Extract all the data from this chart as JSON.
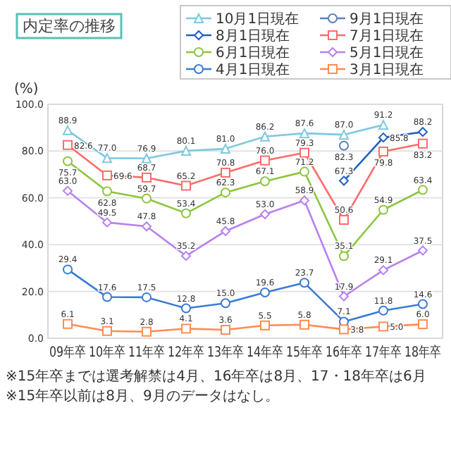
{
  "chart_data": {
    "type": "line",
    "title": "内定率の推移",
    "ylabel": "(%)",
    "categories": [
      "09年卒",
      "10年卒",
      "11年卒",
      "12年卒",
      "13年卒",
      "14年卒",
      "15年卒",
      "16年卒",
      "17年卒",
      "18年卒"
    ],
    "series": [
      {
        "name": "10月1日現在",
        "color": "#7ec8e0",
        "marker": "triangle",
        "values": [
          88.9,
          77.0,
          76.9,
          80.1,
          81.0,
          86.2,
          87.6,
          87.0,
          91.2,
          null
        ],
        "value_labels": [
          "88.9",
          "77.0",
          "76.9",
          "80.1",
          "81.0",
          "86.2",
          "87.6",
          "87.0",
          "91.2",
          null
        ]
      },
      {
        "name": "9月1日現在",
        "color": "#5a7fc0",
        "marker": "circle",
        "values": [
          null,
          null,
          null,
          null,
          null,
          null,
          null,
          82.3,
          null,
          null
        ],
        "value_labels": [
          null,
          null,
          null,
          null,
          null,
          null,
          null,
          "82.3",
          null,
          null
        ]
      },
      {
        "name": "8月1日現在",
        "color": "#1f5fbf",
        "marker": "diamond",
        "values": [
          null,
          null,
          null,
          null,
          null,
          null,
          null,
          67.3,
          85.8,
          88.2
        ],
        "value_labels": [
          null,
          null,
          null,
          null,
          null,
          null,
          null,
          "67.3",
          "85.8",
          "88.2"
        ]
      },
      {
        "name": "7月1日現在",
        "color": "#ff6b6b",
        "marker": "square",
        "values": [
          82.6,
          69.6,
          68.7,
          65.2,
          70.8,
          76.0,
          79.3,
          50.6,
          79.8,
          83.2
        ],
        "value_labels": [
          "82.6",
          "69.6",
          "68.7",
          "65.2",
          "70.8",
          "76.0",
          "79.3",
          "50.6",
          "79.8",
          "83.2"
        ]
      },
      {
        "name": "6月1日現在",
        "color": "#8cc63f",
        "marker": "circle",
        "values": [
          75.7,
          62.8,
          59.7,
          53.4,
          62.3,
          67.1,
          71.2,
          35.1,
          54.9,
          63.4
        ],
        "value_labels": [
          "75.7",
          "62.8",
          "59.7",
          "53.4",
          "62.3",
          "67.1",
          "71.2",
          "35.1",
          "54.9",
          "63.4"
        ]
      },
      {
        "name": "5月1日現在",
        "color": "#b880f0",
        "marker": "diamond",
        "values": [
          63.0,
          49.5,
          47.8,
          35.2,
          45.8,
          53.0,
          58.9,
          17.9,
          29.1,
          37.5
        ],
        "value_labels": [
          "63.0",
          "49.5",
          "47.8",
          "35.2",
          "45.8",
          "53.0",
          "58.9",
          "17.9",
          "29.1",
          "37.5"
        ]
      },
      {
        "name": "4月1日現在",
        "color": "#3a7bd5",
        "marker": "circle",
        "values": [
          29.4,
          17.6,
          17.5,
          12.8,
          15.0,
          19.6,
          23.7,
          7.1,
          11.8,
          14.6
        ],
        "value_labels": [
          "29.4",
          "17.6",
          "17.5",
          "12.8",
          "15.0",
          "19.6",
          "23.7",
          "7.1",
          "11.8",
          "14.6"
        ]
      },
      {
        "name": "3月1日現在",
        "color": "#ff8c50",
        "marker": "square",
        "values": [
          6.1,
          3.1,
          2.8,
          4.1,
          3.6,
          5.5,
          5.8,
          3.8,
          5.0,
          6.0
        ],
        "value_labels": [
          "6.1",
          "3.1",
          "2.8",
          "4.1",
          "3.6",
          "5.5",
          "5.8",
          "3.8",
          "5.0",
          "6.0"
        ]
      }
    ],
    "ylim": [
      0,
      100
    ],
    "yticks": [
      {
        "value": 0,
        "label": "0.0"
      },
      {
        "value": 20,
        "label": "20.0"
      },
      {
        "value": 40,
        "label": "40.0"
      },
      {
        "value": 60,
        "label": "60.0"
      },
      {
        "value": 80,
        "label": "80.0"
      },
      {
        "value": 100,
        "label": "100.0"
      }
    ],
    "grid": "y",
    "legend": "top right",
    "line_style": "solid",
    "annotations": [
      "※15年卒までは選考解禁は4月、16年卒は8月、17・18年卒は6月",
      "※15年卒以前は8月、9月のデータはなし。"
    ]
  }
}
